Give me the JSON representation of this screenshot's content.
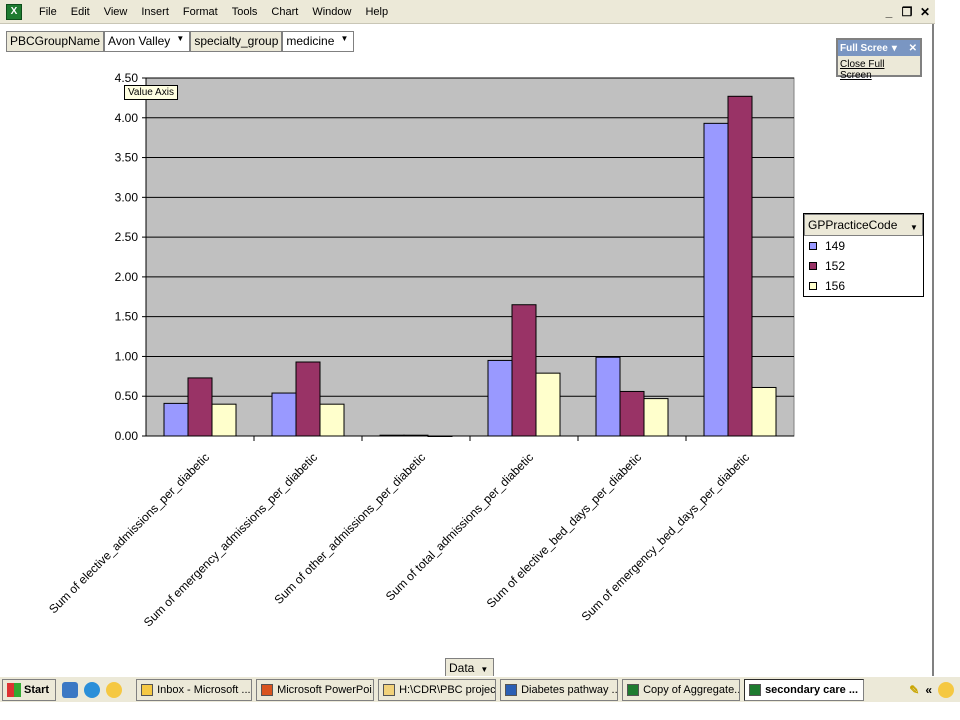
{
  "menubar": {
    "items": [
      "File",
      "Edit",
      "View",
      "Insert",
      "Format",
      "Tools",
      "Chart",
      "Window",
      "Help"
    ],
    "min_glyph": "_",
    "restore_glyph": "❐",
    "close_glyph": "✕"
  },
  "page_fields": {
    "group_label": "PBCGroupName",
    "group_value": "Avon Valley",
    "specialty_label": "specialty_group",
    "specialty_value": "medicine"
  },
  "fullscreen_toolbar": {
    "title": "Full Scree",
    "button": "Close Full Screen"
  },
  "tooltip": "Value Axis",
  "legend": {
    "title": "GPPracticeCode",
    "items": [
      {
        "label": "149",
        "color": "#9999ff"
      },
      {
        "label": "152",
        "color": "#993366"
      },
      {
        "label": "156",
        "color": "#ffffcc"
      }
    ]
  },
  "data_field": "Data",
  "chart_data": {
    "type": "bar",
    "categories": [
      "Sum of elective_admissions_per_diabetic",
      "Sum of emergency_admissions_per_diabetic",
      "Sum of other_admissions_per_diabetic",
      "Sum of total_admissions_per_diabetic",
      "Sum of elective_bed_days_per_diabetic",
      "Sum of emergency_bed_days_per_diabetic"
    ],
    "series": [
      {
        "name": "149",
        "color": "#9999ff",
        "values": [
          0.41,
          0.54,
          0.01,
          0.95,
          0.99,
          3.93
        ]
      },
      {
        "name": "152",
        "color": "#993366",
        "values": [
          0.73,
          0.93,
          0.01,
          1.65,
          0.56,
          4.27
        ]
      },
      {
        "name": "156",
        "color": "#ffffcc",
        "values": [
          0.4,
          0.4,
          0.0,
          0.79,
          0.47,
          0.61
        ]
      }
    ],
    "yticks": [
      "0.00",
      "0.50",
      "1.00",
      "1.50",
      "2.00",
      "2.50",
      "3.00",
      "3.50",
      "4.00",
      "4.50"
    ],
    "ylim": [
      0,
      4.5
    ],
    "plot_bg": "#c0c0c0",
    "grid": true
  },
  "taskbar": {
    "start": "Start",
    "tasks": [
      {
        "label": "Inbox - Microsoft ...",
        "color": "#f5c842"
      },
      {
        "label": "Microsoft PowerPoi...",
        "color": "#d9531e"
      },
      {
        "label": "H:\\CDR\\PBC projec...",
        "color": "#f2d27a"
      },
      {
        "label": "Diabetes pathway ...",
        "color": "#2b5fb4"
      },
      {
        "label": "Copy of Aggregate...",
        "color": "#1e7b30"
      },
      {
        "label": "secondary care ...",
        "color": "#1e7b30",
        "active": true
      }
    ],
    "tray": "«"
  }
}
